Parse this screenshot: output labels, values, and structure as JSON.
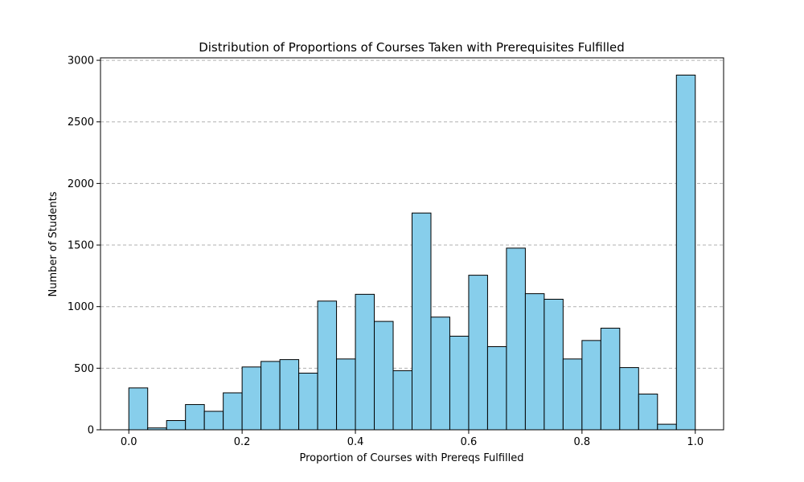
{
  "chart_data": {
    "type": "bar",
    "title": "Distribution of Proportions of Courses Taken with Prerequisites Fulfilled",
    "xlabel": "Proportion of Courses with Prereqs Fulfilled",
    "ylabel": "Number of Students",
    "xlim": [
      -0.05,
      1.05
    ],
    "ylim": [
      0,
      3020
    ],
    "x_ticks": [
      0.0,
      0.2,
      0.4,
      0.6,
      0.8,
      1.0
    ],
    "x_tick_labels": [
      "0.0",
      "0.2",
      "0.4",
      "0.6",
      "0.8",
      "1.0"
    ],
    "y_ticks": [
      0,
      500,
      1000,
      1500,
      2000,
      2500,
      3000
    ],
    "y_tick_labels": [
      "0",
      "500",
      "1000",
      "1500",
      "2000",
      "2500",
      "3000"
    ],
    "grid": "y-dashed",
    "bar_color": "#87CEEB",
    "edge_color": "#000000",
    "bins": 30,
    "bin_start": 0.0,
    "bin_end": 1.0,
    "values": [
      340,
      15,
      75,
      205,
      150,
      300,
      510,
      555,
      570,
      460,
      1045,
      575,
      1100,
      880,
      480,
      1760,
      915,
      760,
      1255,
      675,
      1475,
      1105,
      1060,
      575,
      725,
      825,
      505,
      290,
      45,
      2880
    ]
  }
}
